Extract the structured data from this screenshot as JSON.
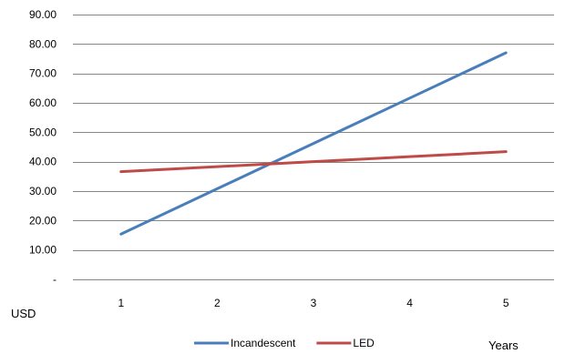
{
  "chart_data": {
    "type": "line",
    "categories": [
      "1",
      "2",
      "3",
      "4",
      "5"
    ],
    "series": [
      {
        "name": "Incandescent",
        "color": "#4A7EBB",
        "values": [
          15.4,
          30.8,
          46.2,
          61.6,
          77.0
        ]
      },
      {
        "name": "LED",
        "color": "#BE4B48",
        "values": [
          36.6,
          38.3,
          40.0,
          41.7,
          43.4
        ]
      }
    ],
    "y_ticks": [
      "90.00",
      "80.00",
      "70.00",
      "60.00",
      "50.00",
      "40.00",
      "30.00",
      "20.00",
      "10.00",
      "-"
    ],
    "ylim": [
      0,
      90
    ],
    "ylabel": "USD",
    "xlabel": "Years",
    "grid": true,
    "legend_position": "bottom"
  }
}
